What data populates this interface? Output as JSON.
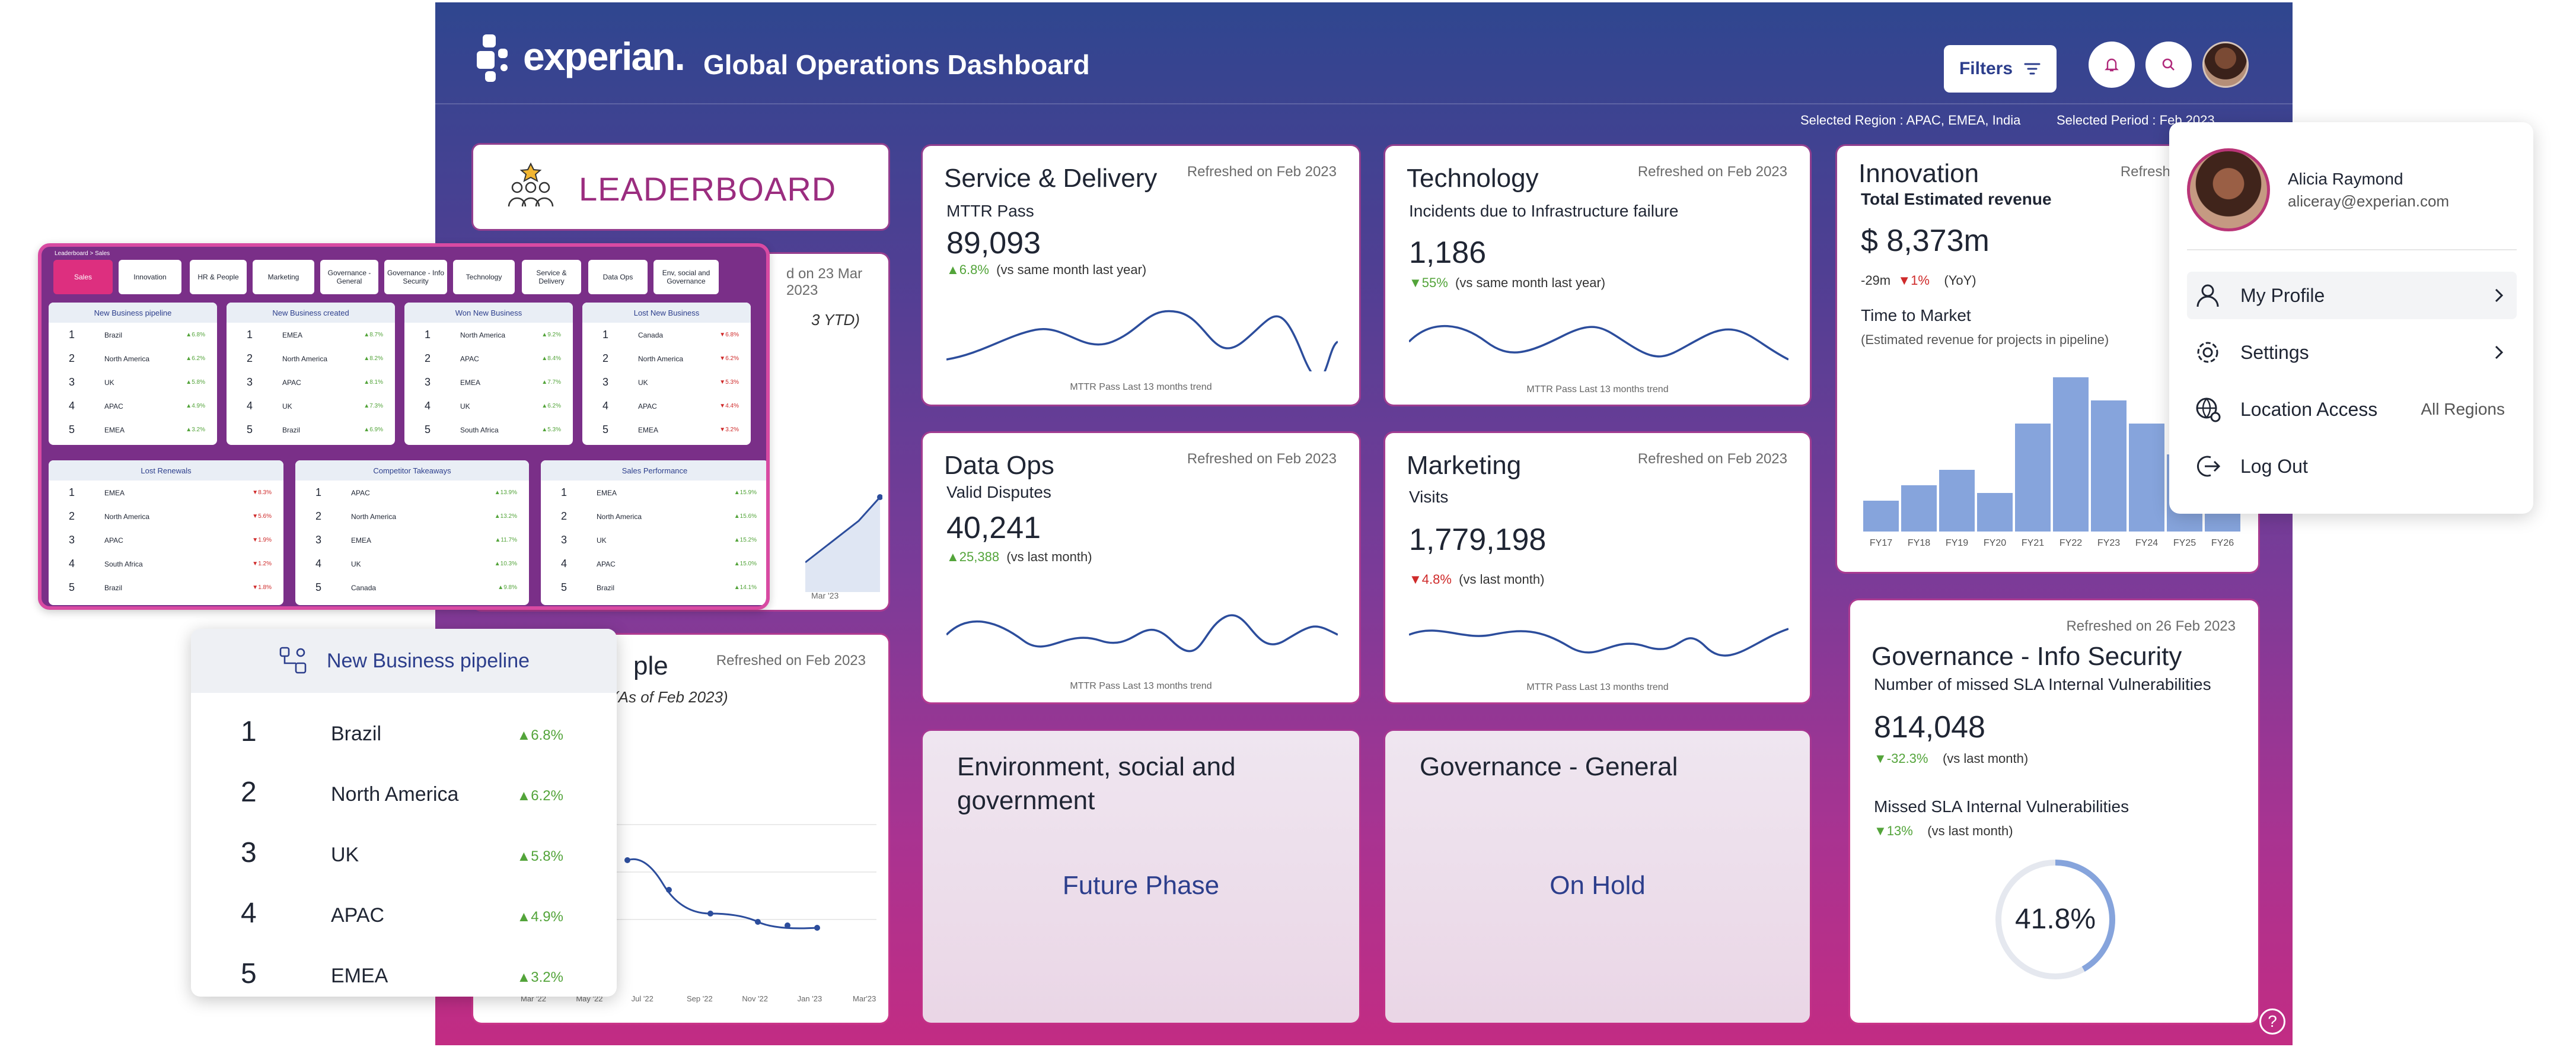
{
  "header": {
    "logo_text": "experian.",
    "title": "Global Operations Dashboard",
    "filters_label": "Filters",
    "selected_region": "Selected Region : APAC, EMEA, India",
    "selected_period": "Selected Period : Feb 2023"
  },
  "leaderboard": {
    "label": "LEADERBOARD"
  },
  "cards": {
    "service": {
      "title": "Service & Delivery",
      "refreshed": "Refreshed on Feb 2023",
      "metric": "MTTR Pass",
      "value": "89,093",
      "delta": "▲6.8%",
      "delta_note": "(vs same month last year)",
      "trend_label": "MTTR Pass Last 13 months trend"
    },
    "technology": {
      "title": "Technology",
      "refreshed": "Refreshed on Feb 2023",
      "metric": "Incidents due to Infrastructure failure",
      "value": "1,186",
      "delta": "▼55%",
      "delta_note": "(vs same month last year)",
      "trend_label": "MTTR Pass Last 13 months trend"
    },
    "innovation": {
      "title": "Innovation",
      "refreshed": "Refreshed on Feb 2023",
      "metric": "Total Estimated revenue",
      "value": "$ 8,373m",
      "delta_a": "-29m",
      "delta_b": "▼1%",
      "delta_note": "(YoY)",
      "sub_title": "Time to Market",
      "sub_note": "(Estimated revenue for projects in pipeline)"
    },
    "dataops": {
      "title": "Data Ops",
      "refreshed": "Refreshed on Feb 2023",
      "metric": "Valid Disputes",
      "value": "40,241",
      "delta": "▲25,388",
      "delta_note": "(vs last month)",
      "trend_label": "MTTR Pass Last 13 months trend"
    },
    "marketing": {
      "title": "Marketing",
      "refreshed": "Refreshed on Feb 2023",
      "metric": "Visits",
      "value": "1,779,198",
      "delta": "▼4.8%",
      "delta_note": "(vs last month)",
      "trend_label": "MTTR Pass Last 13 months trend"
    },
    "governance_info": {
      "title": "Governance - Info Security",
      "refreshed": "Refreshed on 26 Feb 2023",
      "metric": "Number of missed SLA Internal Vulnerabilities",
      "value": "814,048",
      "delta": "▼-32.3%",
      "delta_note": "(vs last month)",
      "sub_title": "Missed SLA Internal Vulnerabilities",
      "sub_delta": "▼13%",
      "sub_note": "(vs last month)",
      "gauge_value": "41.8%",
      "gauge_fraction": 0.418
    },
    "people": {
      "title_fragment": "ple",
      "refreshed": "Refreshed on Feb 2023",
      "note": "(As of Feb 2023)",
      "x_labels": [
        "Mar '22",
        "May '22",
        "Jul '22",
        "Sep '22",
        "Nov '22",
        "Jan '23",
        "Mar'23"
      ]
    },
    "hidden_card": {
      "refreshed_fragment": "d on 23 Mar 2023",
      "note_fragment": "3 YTD)",
      "x_fragment": "Mar '23"
    }
  },
  "phases": {
    "esg": {
      "title": "Environment, social and government",
      "status": "Future Phase"
    },
    "governance_general": {
      "title": "Governance - General",
      "status": "On Hold"
    }
  },
  "chart_data": [
    {
      "type": "bar",
      "title": "Time to Market",
      "categories": [
        "FY17",
        "FY18",
        "FY19",
        "FY20",
        "FY21",
        "FY22",
        "FY23",
        "FY24",
        "FY25",
        "FY26"
      ],
      "values": [
        2,
        3,
        4,
        2.5,
        7,
        10,
        8.5,
        7,
        5,
        3
      ],
      "color": "#86a4dc"
    }
  ],
  "profile": {
    "name": "Alicia Raymond",
    "email": "aliceray@experian.com",
    "items": [
      {
        "label": "My Profile",
        "extra": ""
      },
      {
        "label": "Settings",
        "extra": ""
      },
      {
        "label": "Location Access",
        "extra": "All Regions"
      },
      {
        "label": "Log Out",
        "extra": ""
      }
    ]
  },
  "lb_overlay": {
    "breadcrumb": "Leaderboard > Sales",
    "tabs": [
      "Sales",
      "Innovation",
      "HR & People",
      "Marketing",
      "Governance - General",
      "Governance - Info Security",
      "Technology",
      "Service & Delivery",
      "Data Ops",
      "Env, social and Governance"
    ],
    "panels": [
      {
        "title": "New Business pipeline",
        "rows": [
          [
            "1",
            "Brazil",
            "▲6.8%"
          ],
          [
            "2",
            "North America",
            "▲6.2%"
          ],
          [
            "3",
            "UK",
            "▲5.8%"
          ],
          [
            "4",
            "APAC",
            "▲4.9%"
          ],
          [
            "5",
            "EMEA",
            "▲3.2%"
          ]
        ]
      },
      {
        "title": "New Business created",
        "rows": [
          [
            "1",
            "EMEA",
            "▲8.7%"
          ],
          [
            "2",
            "North America",
            "▲8.2%"
          ],
          [
            "3",
            "APAC",
            "▲8.1%"
          ],
          [
            "4",
            "UK",
            "▲7.3%"
          ],
          [
            "5",
            "Brazil",
            "▲6.9%"
          ]
        ]
      },
      {
        "title": "Won New Business",
        "rows": [
          [
            "1",
            "North America",
            "▲9.2%"
          ],
          [
            "2",
            "APAC",
            "▲8.4%"
          ],
          [
            "3",
            "EMEA",
            "▲7.7%"
          ],
          [
            "4",
            "UK",
            "▲6.2%"
          ],
          [
            "5",
            "South Africa",
            "▲5.3%"
          ]
        ]
      },
      {
        "title": "Lost New Business",
        "rows": [
          [
            "1",
            "Canada",
            "▼6.8%"
          ],
          [
            "2",
            "North America",
            "▼6.2%"
          ],
          [
            "3",
            "UK",
            "▼5.3%"
          ],
          [
            "4",
            "APAC",
            "▼4.4%"
          ],
          [
            "5",
            "EMEA",
            "▼3.2%"
          ]
        ]
      },
      {
        "title": "Lost Renewals",
        "rows": [
          [
            "1",
            "EMEA",
            "▼8.3%"
          ],
          [
            "2",
            "North America",
            "▼5.6%"
          ],
          [
            "3",
            "APAC",
            "▼1.9%"
          ],
          [
            "4",
            "South Africa",
            "▼1.2%"
          ],
          [
            "5",
            "Brazil",
            "▼1.8%"
          ]
        ]
      },
      {
        "title": "Competitor Takeaways",
        "rows": [
          [
            "1",
            "APAC",
            "▲13.9%"
          ],
          [
            "2",
            "North America",
            "▲13.2%"
          ],
          [
            "3",
            "EMEA",
            "▲11.7%"
          ],
          [
            "4",
            "UK",
            "▲10.3%"
          ],
          [
            "5",
            "Canada",
            "▲9.8%"
          ]
        ]
      },
      {
        "title": "Sales Performance",
        "rows": [
          [
            "1",
            "EMEA",
            "▲15.9%"
          ],
          [
            "2",
            "North America",
            "▲15.6%"
          ],
          [
            "3",
            "UK",
            "▲15.2%"
          ],
          [
            "4",
            "APAC",
            "▲15.0%"
          ],
          [
            "5",
            "Brazil",
            "▲14.1%"
          ]
        ]
      }
    ]
  },
  "pipeline": {
    "title": "New Business pipeline",
    "rows": [
      [
        "1",
        "Brazil",
        "▲6.8%"
      ],
      [
        "2",
        "North America",
        "▲6.2%"
      ],
      [
        "3",
        "UK",
        "▲5.8%"
      ],
      [
        "4",
        "APAC",
        "▲4.9%"
      ],
      [
        "5",
        "EMEA",
        "▲3.2%"
      ]
    ]
  }
}
